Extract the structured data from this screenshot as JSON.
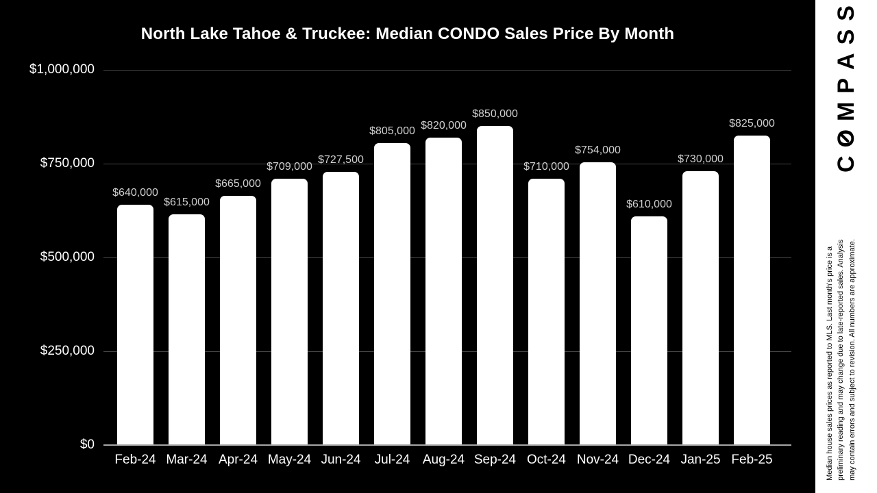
{
  "chart_data": {
    "type": "bar",
    "title": "North Lake Tahoe & Truckee: Median CONDO Sales Price By Month",
    "categories": [
      "Feb-24",
      "Mar-24",
      "Apr-24",
      "May-24",
      "Jun-24",
      "Jul-24",
      "Aug-24",
      "Sep-24",
      "Oct-24",
      "Nov-24",
      "Dec-24",
      "Jan-25",
      "Feb-25"
    ],
    "values": [
      640000,
      615000,
      665000,
      709000,
      727500,
      805000,
      820000,
      850000,
      710000,
      754000,
      610000,
      730000,
      825000
    ],
    "value_labels": [
      "$640,000",
      "$615,000",
      "$665,000",
      "$709,000",
      "$727,500",
      "$805,000",
      "$820,000",
      "$850,000",
      "$710,000",
      "$754,000",
      "$610,000",
      "$730,000",
      "$825,000"
    ],
    "xlabel": "",
    "ylabel": "",
    "ylim": [
      0,
      1000000
    ],
    "y_ticks_top_to_bottom": [
      "$1,000,000",
      "$750,000",
      "$500,000",
      "$250,000",
      "$0"
    ],
    "grid": true,
    "legend": false,
    "colors": {
      "background": "#000000",
      "bar_fill": "#ffffff",
      "gridline": "#474747",
      "axis_line": "#a6a6a6",
      "title_text": "#ffffff",
      "axis_text": "#ffffff",
      "value_label_text": "#cfcfcf"
    }
  },
  "sidebar": {
    "logo_text": "COMPASS",
    "logo_color": "#000000",
    "background": "#ffffff",
    "disclaimer_lines": [
      "Median house sales prices as reported to MLS. Last month's price is a",
      "preliminary reading and may change due to late-reported sales. Analysis",
      "may contain errors and subject to revision. All numbers are approximate."
    ]
  }
}
